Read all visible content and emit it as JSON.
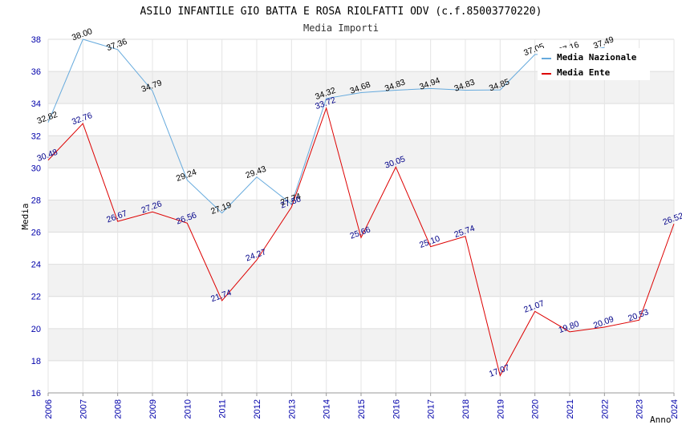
{
  "chart_data": {
    "type": "line",
    "title": "ASILO INFANTILE GIO BATTA E ROSA RIOLFATTI ODV (c.f.85003770220)",
    "subtitle": "Media Importi",
    "xlabel": "Anno",
    "ylabel": "Media",
    "ylim": [
      16,
      38
    ],
    "yticks": [
      16,
      18,
      20,
      22,
      24,
      26,
      28,
      30,
      32,
      34,
      36,
      38
    ],
    "categories": [
      "2006",
      "2007",
      "2008",
      "2009",
      "2010",
      "2011",
      "2012",
      "2013",
      "2014",
      "2015",
      "2016",
      "2017",
      "2018",
      "2019",
      "2020",
      "2021",
      "2022",
      "2023",
      "2024"
    ],
    "series": [
      {
        "name": "Media Nazionale",
        "color": "#66aadd",
        "label_color": "#000000",
        "values": [
          32.82,
          38.0,
          37.36,
          34.79,
          29.24,
          27.19,
          29.43,
          27.74,
          34.32,
          34.68,
          34.83,
          34.94,
          34.83,
          34.85,
          37.05,
          37.16,
          37.49,
          null,
          null
        ],
        "labels": [
          "32.82",
          "38.00",
          "37.36",
          "34.79",
          "29.24",
          "27.19",
          "29.43",
          "27.74",
          "34.32",
          "34.68",
          "34.83",
          "34.94",
          "34.83",
          "34.85",
          "37.05",
          "37.16",
          "37.49",
          "",
          ""
        ]
      },
      {
        "name": "Media Ente",
        "color": "#dd0000",
        "label_color": "#000088",
        "values": [
          30.48,
          32.76,
          26.67,
          27.26,
          26.56,
          21.74,
          24.27,
          27.56,
          33.72,
          25.66,
          30.05,
          25.1,
          25.74,
          17.07,
          21.07,
          19.8,
          20.09,
          20.53,
          26.52
        ],
        "labels": [
          "30.48",
          "32.76",
          "26.67",
          "27.26",
          "26.56",
          "21.74",
          "24.27",
          "27.56",
          "33.72",
          "25.66",
          "30.05",
          "25.10",
          "25.74",
          "17.07",
          "21.07",
          "19.80",
          "20.09",
          "20.53",
          "26.52"
        ]
      }
    ],
    "legend_position": "top-right",
    "grid": true
  }
}
